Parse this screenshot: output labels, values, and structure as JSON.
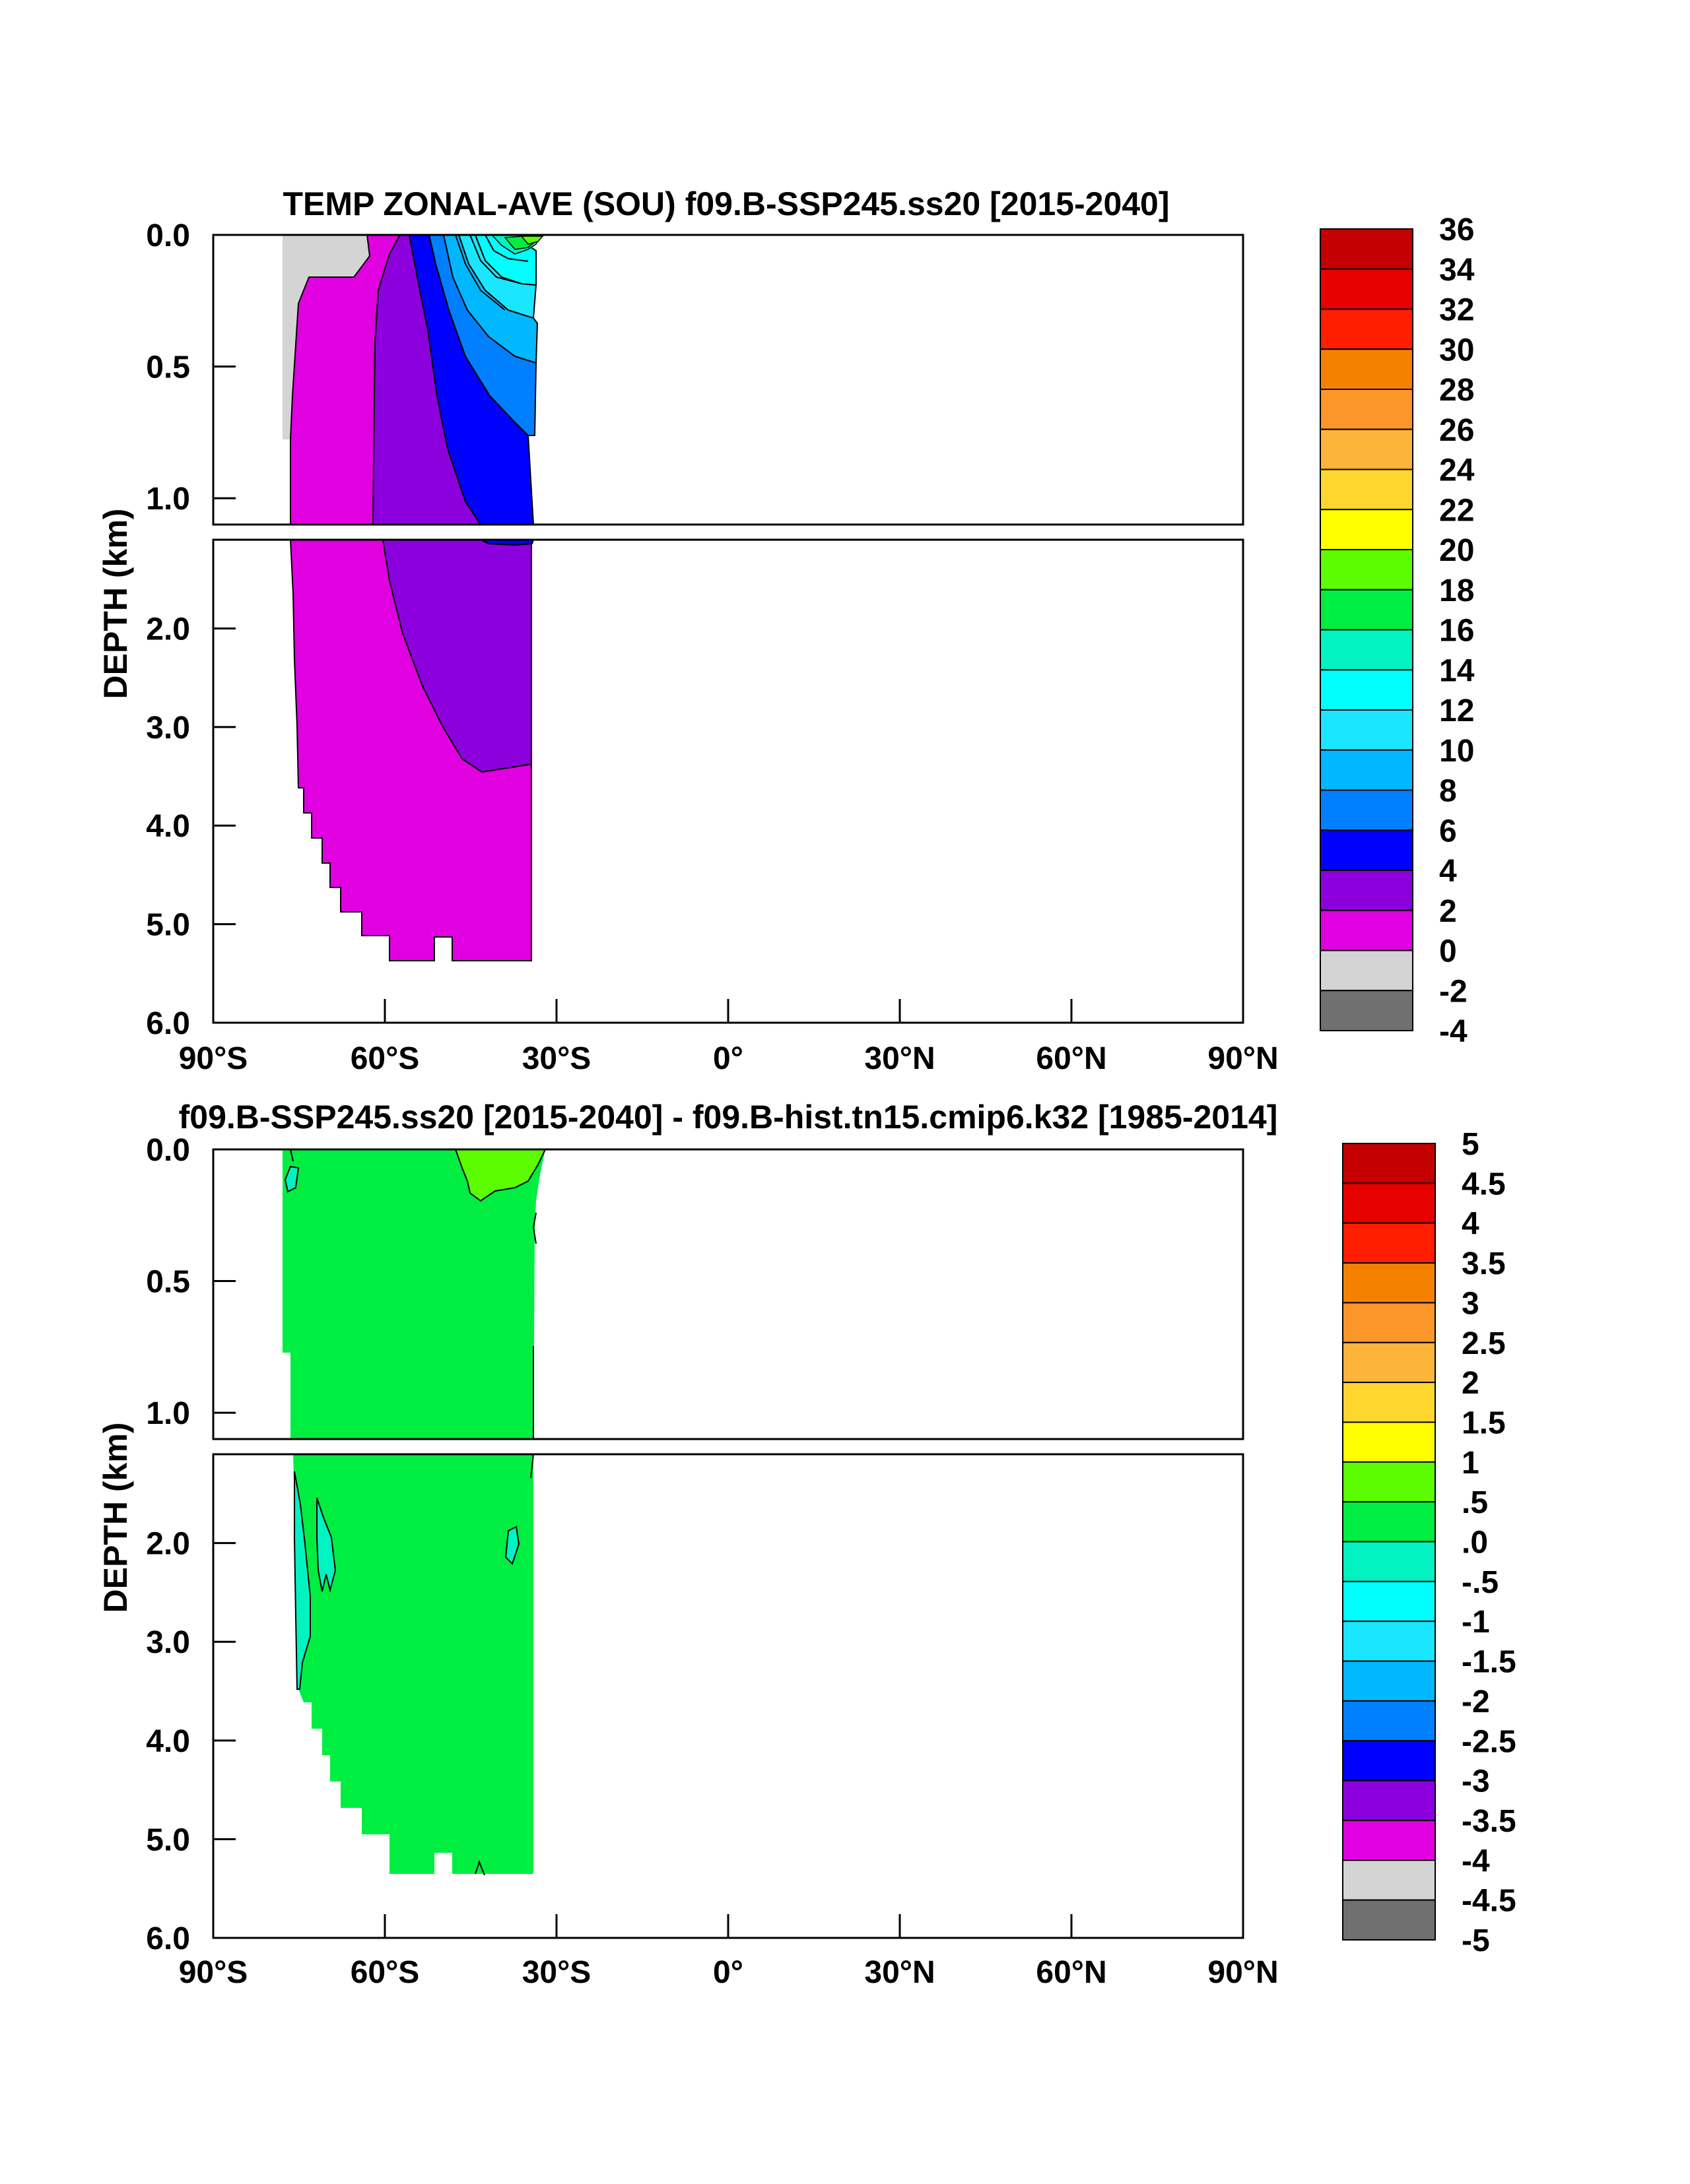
{
  "chart_data": [
    {
      "type": "contour",
      "title": "TEMP ZONAL-AVE (SOU) f09.B-SSP245.ss20 [2015-2040]",
      "ylabel": "DEPTH (km)",
      "x_ticks": [
        "90°S",
        "60°S",
        "30°S",
        "0°",
        "30°N",
        "60°N",
        "90°N"
      ],
      "y_ticks_upper": [
        "0.0",
        "0.5",
        "1.0"
      ],
      "y_ticks_lower": [
        "2.0",
        "3.0",
        "4.0",
        "5.0",
        "6.0"
      ],
      "xlim": [
        -90,
        90
      ],
      "ylim_upper_km": [
        0,
        1.1
      ],
      "ylim_lower_km": [
        1.1,
        6.0
      ],
      "colorbar_levels": [
        "36",
        "34",
        "32",
        "30",
        "28",
        "26",
        "24",
        "22",
        "20",
        "18",
        "16",
        "14",
        "12",
        "10",
        "8",
        "6",
        "4",
        "2",
        "0",
        "-2",
        "-4"
      ],
      "colorbar_colors": [
        "#c40000",
        "#e60000",
        "#ff1e00",
        "#f48200",
        "#fc9629",
        "#fdb43a",
        "#ffd62d",
        "#ffff00",
        "#5cfd00",
        "#00ee42",
        "#00f3c1",
        "#00ffff",
        "#1ae6ff",
        "#00b8ff",
        "#0080ff",
        "#0000ff",
        "#8c00de",
        "#e000e0",
        "#d4d4d4",
        "#707070"
      ]
    },
    {
      "type": "contour",
      "title": "f09.B-SSP245.ss20 [2015-2040] - f09.B-hist.tn15.cmip6.k32 [1985-2014]",
      "ylabel": "DEPTH (km)",
      "x_ticks": [
        "90°S",
        "60°S",
        "30°S",
        "0°",
        "30°N",
        "60°N",
        "90°N"
      ],
      "y_ticks_upper": [
        "0.0",
        "0.5",
        "1.0"
      ],
      "y_ticks_lower": [
        "2.0",
        "3.0",
        "4.0",
        "5.0",
        "6.0"
      ],
      "xlim": [
        -90,
        90
      ],
      "ylim_upper_km": [
        0,
        1.1
      ],
      "ylim_lower_km": [
        1.1,
        6.0
      ],
      "colorbar_levels": [
        "5",
        "4.5",
        "4",
        "3.5",
        "3",
        "2.5",
        "2",
        "1.5",
        "1",
        ".5",
        ".0",
        "-.5",
        "-1",
        "-1.5",
        "-2",
        "-2.5",
        "-3",
        "-3.5",
        "-4",
        "-4.5",
        "-5"
      ],
      "colorbar_colors": [
        "#c40000",
        "#e60000",
        "#ff1e00",
        "#f48200",
        "#fc9629",
        "#fdb43a",
        "#ffd62d",
        "#ffff00",
        "#5cfd00",
        "#00ee42",
        "#00f3c1",
        "#00ffff",
        "#1ae6ff",
        "#00b8ff",
        "#0080ff",
        "#0000ff",
        "#8c00de",
        "#e000e0",
        "#d4d4d4",
        "#707070"
      ]
    }
  ]
}
